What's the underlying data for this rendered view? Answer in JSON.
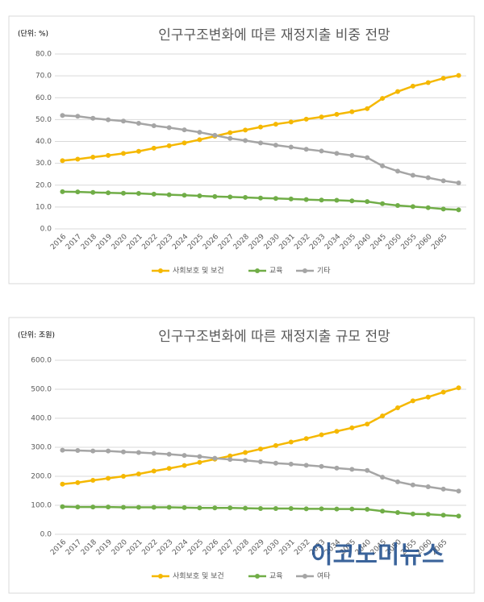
{
  "chart_data": [
    {
      "type": "line",
      "title": "인구구조변화에 따른 재정지출 비중 전망",
      "unit": "(단위: %)",
      "categories": [
        "2016",
        "2017",
        "2018",
        "2019",
        "2020",
        "2021",
        "2022",
        "2023",
        "2024",
        "2025",
        "2026",
        "2027",
        "2028",
        "2029",
        "2030",
        "2031",
        "2032",
        "2033",
        "2034",
        "2035",
        "2040",
        "2045",
        "2050",
        "2055",
        "2060",
        "2065",
        null
      ],
      "series": [
        {
          "name": "사회보호 및 보건",
          "color": "#f5b800",
          "values": [
            31.2,
            31.9,
            32.8,
            33.6,
            34.5,
            35.5,
            36.9,
            38.0,
            39.3,
            40.8,
            42.4,
            44.0,
            45.2,
            46.6,
            47.9,
            48.9,
            50.2,
            51.2,
            52.4,
            53.6,
            55.0,
            59.7,
            62.8,
            65.3,
            66.9,
            68.9,
            70.2
          ]
        },
        {
          "name": "교육",
          "color": "#70ad47",
          "values": [
            17.0,
            16.9,
            16.7,
            16.5,
            16.3,
            16.2,
            15.9,
            15.6,
            15.4,
            15.1,
            14.8,
            14.6,
            14.4,
            14.1,
            13.9,
            13.7,
            13.4,
            13.2,
            13.1,
            12.8,
            12.5,
            11.5,
            10.7,
            10.2,
            9.7,
            9.1,
            8.7
          ]
        },
        {
          "name": "기타",
          "color": "#a5a5a5",
          "values": [
            51.9,
            51.5,
            50.6,
            49.9,
            49.3,
            48.3,
            47.2,
            46.3,
            45.3,
            44.2,
            42.8,
            41.4,
            40.4,
            39.3,
            38.3,
            37.4,
            36.4,
            35.6,
            34.5,
            33.6,
            32.6,
            28.8,
            26.4,
            24.5,
            23.4,
            22.0,
            21.0
          ]
        }
      ],
      "ylim": [
        0,
        80
      ],
      "yticks": [
        {
          "value": 0,
          "label": "0.0"
        },
        {
          "value": 10,
          "label": "10.0"
        },
        {
          "value": 20,
          "label": "20.0"
        },
        {
          "value": 30,
          "label": "30.0"
        },
        {
          "value": 40,
          "label": "40.0"
        },
        {
          "value": 50,
          "label": "50.0"
        },
        {
          "value": 60,
          "label": "60.0"
        },
        {
          "value": 70,
          "label": "70.0"
        },
        {
          "value": 80,
          "label": "80.0"
        }
      ],
      "grid": true,
      "legend": "bottom"
    },
    {
      "type": "line",
      "title": "인구구조변화에 따른 재정지출 규모 전망",
      "unit": "(단위: 조원)",
      "categories": [
        "2016",
        "2017",
        "2018",
        "2019",
        "2020",
        "2021",
        "2022",
        "2023",
        "2024",
        "2025",
        "2026",
        "2027",
        "2028",
        "2029",
        "2030",
        "2031",
        "2032",
        "2033",
        "2034",
        "2035",
        "2040",
        "2045",
        "2050",
        "2055",
        "2060",
        "2065",
        null
      ],
      "series": [
        {
          "name": "사회보호 및 보건",
          "color": "#f5b800",
          "values": [
            173,
            178,
            186,
            193,
            200,
            208,
            218,
            227,
            237,
            248,
            259,
            270,
            282,
            294,
            306,
            318,
            330,
            343,
            355,
            367,
            380,
            408,
            436,
            460,
            473,
            490,
            505
          ]
        },
        {
          "name": "교육",
          "color": "#70ad47",
          "values": [
            95,
            94,
            94,
            94,
            93,
            93,
            93,
            93,
            92,
            91,
            91,
            91,
            90,
            89,
            89,
            89,
            88,
            88,
            87,
            87,
            86,
            80,
            75,
            70,
            69,
            66,
            63
          ]
        },
        {
          "name": "여타",
          "color": "#a5a5a5",
          "values": [
            290,
            289,
            287,
            287,
            284,
            282,
            279,
            276,
            272,
            268,
            262,
            258,
            255,
            250,
            245,
            242,
            238,
            234,
            228,
            224,
            220,
            197,
            181,
            170,
            164,
            156,
            149
          ]
        }
      ],
      "ylim": [
        0,
        600
      ],
      "yticks": [
        {
          "value": 0,
          "label": "0.0"
        },
        {
          "value": 100,
          "label": "100.0"
        },
        {
          "value": 200,
          "label": "200.0"
        },
        {
          "value": 300,
          "label": "300.0"
        },
        {
          "value": 400,
          "label": "400.0"
        },
        {
          "value": 500,
          "label": "500.0"
        },
        {
          "value": 600,
          "label": "600.0"
        }
      ],
      "grid": true,
      "legend": "bottom"
    }
  ],
  "watermark": "이코노미뉴스"
}
